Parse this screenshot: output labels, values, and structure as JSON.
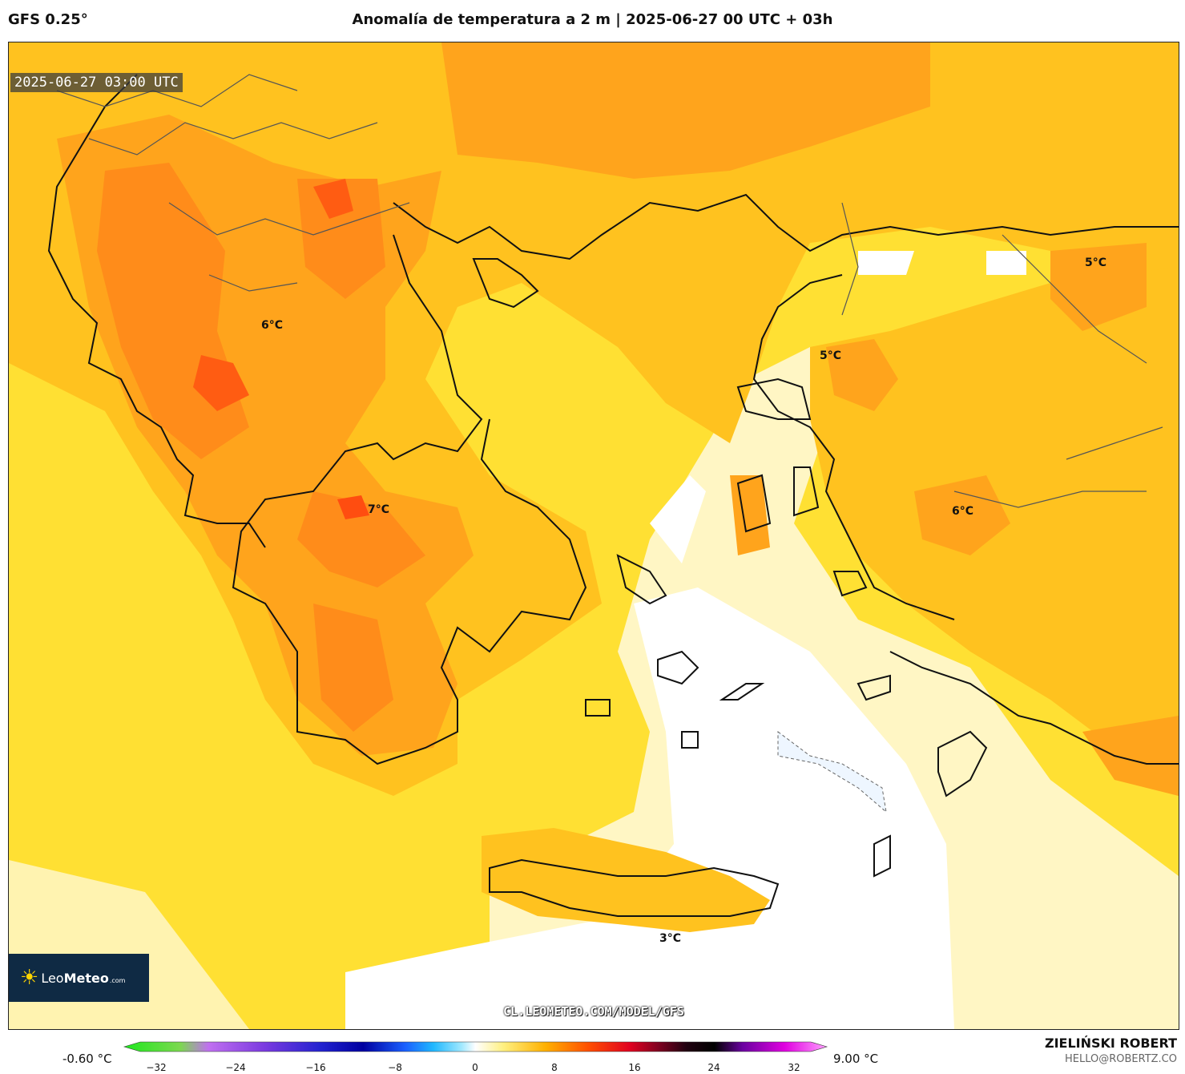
{
  "header": {
    "model": "GFS 0.25°",
    "title": "Anomalía de temperatura a 2 m | 2025-06-27 00 UTC + 03h"
  },
  "map": {
    "timestamp": "2025-06-27 03:00 UTC",
    "watermark": "CL.LEOMETEO.COM/MODEL/GFS",
    "labels": [
      "6°C",
      "7°C",
      "5°C",
      "5°C",
      "6°C",
      "3°C"
    ]
  },
  "logo": {
    "prefix": "Leo",
    "brand": "Meteo",
    "suffix": ".com"
  },
  "legend": {
    "min": "-0.60 °C",
    "max": "9.00 °C",
    "ticks": [
      "−32",
      "−24",
      "−16",
      "−8",
      "0",
      "8",
      "16",
      "24",
      "32"
    ]
  },
  "footer": {
    "author": "ZIELIŃSKI ROBERT",
    "email": "HELLO@ROBERTZ.CO"
  },
  "colors": {
    "land_warm": "#ffd23a",
    "sea": "#ffe033",
    "hot": "#ff8c1a",
    "hottest": "#ff4d10",
    "cool": "#fff3b0"
  }
}
